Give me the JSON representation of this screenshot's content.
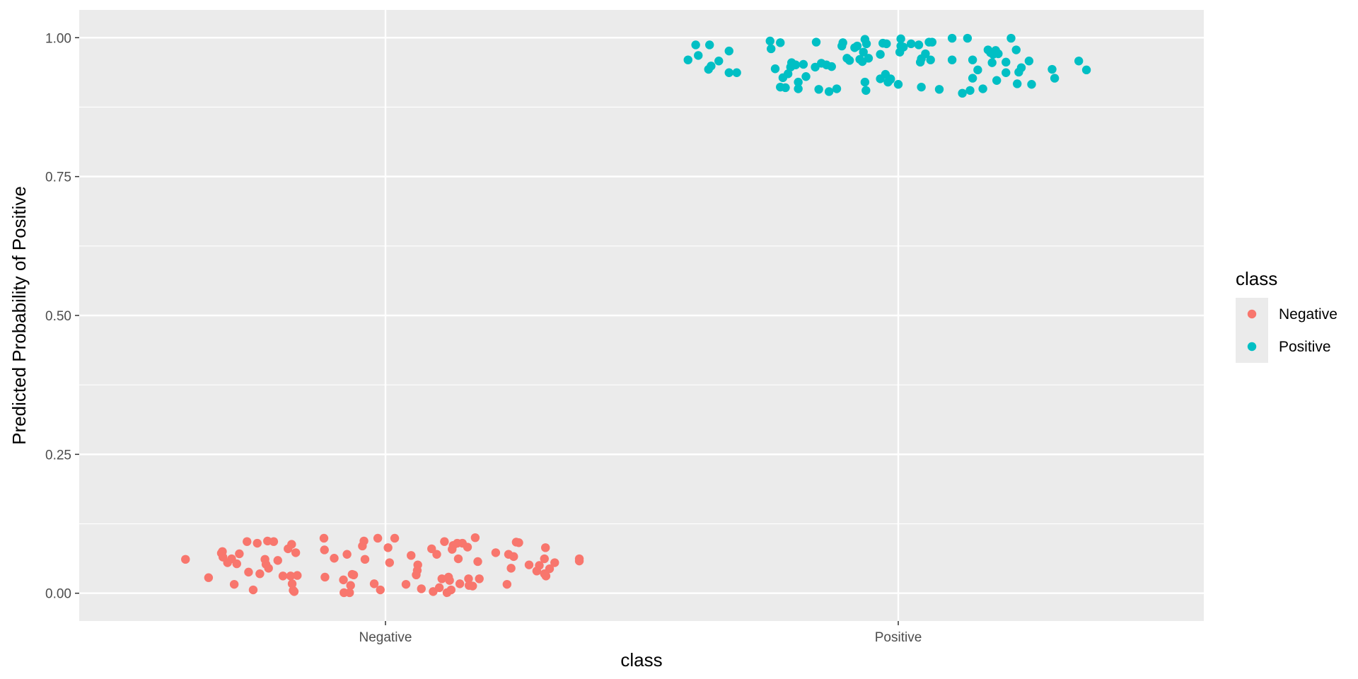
{
  "chart_data": {
    "type": "scatter",
    "xlabel": "class",
    "ylabel": "Predicted Probability of Positive",
    "categories": [
      "Negative",
      "Positive"
    ],
    "ylim": [
      -0.05,
      1.05
    ],
    "yticks": [
      {
        "value": 0.0,
        "label": "0.00"
      },
      {
        "value": 0.25,
        "label": "0.25"
      },
      {
        "value": 0.5,
        "label": "0.50"
      },
      {
        "value": 0.75,
        "label": "0.75"
      },
      {
        "value": 1.0,
        "label": "1.00"
      }
    ],
    "grid": true,
    "jittered": true,
    "legend": {
      "title": "class",
      "placement": "right",
      "entries": [
        {
          "label": "Negative",
          "color": "#F8766D"
        },
        {
          "label": "Positive",
          "color": "#00BFC4"
        }
      ]
    },
    "colors": {
      "panel": "#EBEBEB",
      "grid": "#FFFFFF",
      "negative": "#F8766D",
      "positive": "#00BFC4"
    },
    "series": [
      {
        "name": "Negative",
        "category": "Negative",
        "color": "#F8766D",
        "points": [
          [
            -0.39,
            0.061
          ],
          [
            -0.345,
            0.028
          ],
          [
            -0.32,
            0.072
          ],
          [
            -0.318,
            0.075
          ],
          [
            -0.317,
            0.065
          ],
          [
            -0.308,
            0.055
          ],
          [
            -0.3,
            0.062
          ],
          [
            -0.295,
            0.016
          ],
          [
            -0.29,
            0.053
          ],
          [
            -0.285,
            0.071
          ],
          [
            -0.27,
            0.093
          ],
          [
            -0.267,
            0.038
          ],
          [
            -0.258,
            0.006
          ],
          [
            -0.25,
            0.09
          ],
          [
            -0.245,
            0.035
          ],
          [
            -0.235,
            0.061
          ],
          [
            -0.233,
            0.052
          ],
          [
            -0.23,
            0.094
          ],
          [
            -0.228,
            0.045
          ],
          [
            -0.218,
            0.093
          ],
          [
            -0.21,
            0.059
          ],
          [
            -0.2,
            0.031
          ],
          [
            -0.19,
            0.08
          ],
          [
            -0.185,
            0.031
          ],
          [
            -0.183,
            0.088
          ],
          [
            -0.182,
            0.017
          ],
          [
            -0.18,
            0.005
          ],
          [
            -0.178,
            0.003
          ],
          [
            -0.175,
            0.073
          ],
          [
            -0.172,
            0.032
          ],
          [
            -0.12,
            0.099
          ],
          [
            -0.119,
            0.078
          ],
          [
            -0.118,
            0.029
          ],
          [
            -0.1,
            0.063
          ],
          [
            -0.082,
            0.024
          ],
          [
            -0.081,
            0.001
          ],
          [
            -0.075,
            0.07
          ],
          [
            -0.07,
            0.001
          ],
          [
            -0.068,
            0.014
          ],
          [
            -0.065,
            0.034
          ],
          [
            -0.062,
            0.033
          ],
          [
            -0.045,
            0.085
          ],
          [
            -0.042,
            0.094
          ],
          [
            -0.04,
            0.061
          ],
          [
            -0.022,
            0.017
          ],
          [
            -0.015,
            0.099
          ],
          [
            -0.01,
            0.006
          ],
          [
            0.005,
            0.082
          ],
          [
            0.008,
            0.055
          ],
          [
            0.018,
            0.099
          ],
          [
            0.04,
            0.016
          ],
          [
            0.05,
            0.068
          ],
          [
            0.06,
            0.033
          ],
          [
            0.062,
            0.041
          ],
          [
            0.063,
            0.051
          ],
          [
            0.07,
            0.008
          ],
          [
            0.09,
            0.08
          ],
          [
            0.093,
            0.003
          ],
          [
            0.1,
            0.07
          ],
          [
            0.105,
            0.01
          ],
          [
            0.11,
            0.026
          ],
          [
            0.115,
            0.093
          ],
          [
            0.12,
            0.001
          ],
          [
            0.123,
            0.029
          ],
          [
            0.125,
            0.023
          ],
          [
            0.128,
            0.006
          ],
          [
            0.13,
            0.079
          ],
          [
            0.132,
            0.086
          ],
          [
            0.14,
            0.09
          ],
          [
            0.142,
            0.062
          ],
          [
            0.145,
            0.017
          ],
          [
            0.15,
            0.09
          ],
          [
            0.16,
            0.083
          ],
          [
            0.162,
            0.026
          ],
          [
            0.163,
            0.014
          ],
          [
            0.17,
            0.013
          ],
          [
            0.175,
            0.1
          ],
          [
            0.18,
            0.057
          ],
          [
            0.183,
            0.026
          ],
          [
            0.215,
            0.073
          ],
          [
            0.237,
            0.016
          ],
          [
            0.24,
            0.07
          ],
          [
            0.245,
            0.045
          ],
          [
            0.25,
            0.066
          ],
          [
            0.255,
            0.092
          ],
          [
            0.26,
            0.091
          ],
          [
            0.28,
            0.051
          ],
          [
            0.295,
            0.04
          ],
          [
            0.3,
            0.05
          ],
          [
            0.31,
            0.035
          ],
          [
            0.31,
            0.062
          ],
          [
            0.312,
            0.082
          ],
          [
            0.313,
            0.031
          ],
          [
            0.32,
            0.044
          ],
          [
            0.33,
            0.055
          ],
          [
            0.378,
            0.062
          ],
          [
            0.378,
            0.058
          ]
        ]
      },
      {
        "name": "Positive",
        "category": "Positive",
        "color": "#00BFC4",
        "points": [
          [
            -0.41,
            0.96
          ],
          [
            -0.395,
            0.987
          ],
          [
            -0.39,
            0.968
          ],
          [
            -0.37,
            0.943
          ],
          [
            -0.368,
            0.987
          ],
          [
            -0.365,
            0.949
          ],
          [
            -0.35,
            0.958
          ],
          [
            -0.33,
            0.937
          ],
          [
            -0.315,
            0.937
          ],
          [
            -0.33,
            0.976
          ],
          [
            -0.25,
            0.994
          ],
          [
            -0.248,
            0.98
          ],
          [
            -0.24,
            0.944
          ],
          [
            -0.23,
            0.991
          ],
          [
            -0.23,
            0.911
          ],
          [
            -0.225,
            0.928
          ],
          [
            -0.22,
            0.91
          ],
          [
            -0.215,
            0.935
          ],
          [
            -0.21,
            0.947
          ],
          [
            -0.208,
            0.955
          ],
          [
            -0.2,
            0.951
          ],
          [
            -0.195,
            0.908
          ],
          [
            -0.195,
            0.92
          ],
          [
            -0.185,
            0.952
          ],
          [
            -0.18,
            0.93
          ],
          [
            -0.162,
            0.947
          ],
          [
            -0.16,
            0.992
          ],
          [
            -0.155,
            0.907
          ],
          [
            -0.15,
            0.954
          ],
          [
            -0.14,
            0.951
          ],
          [
            -0.135,
            0.903
          ],
          [
            -0.13,
            0.948
          ],
          [
            -0.12,
            0.908
          ],
          [
            -0.11,
            0.985
          ],
          [
            -0.108,
            0.991
          ],
          [
            -0.1,
            0.963
          ],
          [
            -0.095,
            0.959
          ],
          [
            -0.085,
            0.982
          ],
          [
            -0.08,
            0.985
          ],
          [
            -0.075,
            0.961
          ],
          [
            -0.07,
            0.957
          ],
          [
            -0.068,
            0.974
          ],
          [
            -0.065,
            0.997
          ],
          [
            -0.065,
            0.92
          ],
          [
            -0.063,
            0.905
          ],
          [
            -0.062,
            0.989
          ],
          [
            -0.058,
            0.963
          ],
          [
            -0.035,
            0.97
          ],
          [
            -0.035,
            0.926
          ],
          [
            -0.03,
            0.99
          ],
          [
            -0.025,
            0.934
          ],
          [
            -0.023,
            0.989
          ],
          [
            -0.02,
            0.92
          ],
          [
            -0.015,
            0.926
          ],
          [
            -0.015,
            0.925
          ],
          [
            0.0,
            0.916
          ],
          [
            0.003,
            0.974
          ],
          [
            0.005,
            0.998
          ],
          [
            0.005,
            0.985
          ],
          [
            0.01,
            0.983
          ],
          [
            0.025,
            0.989
          ],
          [
            0.04,
            0.987
          ],
          [
            0.043,
            0.956
          ],
          [
            0.045,
            0.911
          ],
          [
            0.045,
            0.962
          ],
          [
            0.053,
            0.971
          ],
          [
            0.06,
            0.992
          ],
          [
            0.063,
            0.96
          ],
          [
            0.066,
            0.992
          ],
          [
            0.08,
            0.907
          ],
          [
            0.105,
            0.999
          ],
          [
            0.105,
            0.96
          ],
          [
            0.125,
            0.9
          ],
          [
            0.135,
            0.999
          ],
          [
            0.14,
            0.905
          ],
          [
            0.145,
            0.96
          ],
          [
            0.145,
            0.927
          ],
          [
            0.155,
            0.942
          ],
          [
            0.165,
            0.908
          ],
          [
            0.175,
            0.978
          ],
          [
            0.18,
            0.973
          ],
          [
            0.183,
            0.955
          ],
          [
            0.185,
            0.97
          ],
          [
            0.19,
            0.977
          ],
          [
            0.192,
            0.923
          ],
          [
            0.195,
            0.971
          ],
          [
            0.21,
            0.956
          ],
          [
            0.21,
            0.937
          ],
          [
            0.22,
            0.999
          ],
          [
            0.23,
            0.978
          ],
          [
            0.232,
            0.917
          ],
          [
            0.235,
            0.938
          ],
          [
            0.24,
            0.946
          ],
          [
            0.255,
            0.958
          ],
          [
            0.26,
            0.916
          ],
          [
            0.3,
            0.943
          ],
          [
            0.305,
            0.927
          ],
          [
            0.352,
            0.958
          ],
          [
            0.367,
            0.942
          ]
        ]
      }
    ]
  }
}
